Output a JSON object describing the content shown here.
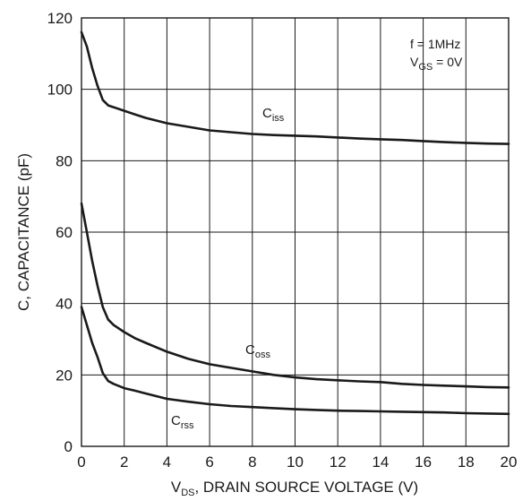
{
  "chart_data": {
    "type": "line",
    "xlabel": {
      "main": "V",
      "sub": "DS",
      "rest": ", DRAIN SOURCE VOLTAGE (V)"
    },
    "ylabel": "C, CAPACITANCE (pF)",
    "xlim": [
      0,
      20
    ],
    "ylim": [
      0,
      120
    ],
    "x_ticks": [
      "0",
      "2",
      "4",
      "6",
      "8",
      "10",
      "12",
      "14",
      "16",
      "18",
      "20"
    ],
    "y_ticks": [
      "0",
      "20",
      "40",
      "60",
      "80",
      "100",
      "120"
    ],
    "grid": true,
    "annotation": {
      "line1": "f = 1MHz",
      "line2_main": "V",
      "line2_sub": "GS",
      "line2_rest": " = 0V"
    },
    "series": [
      {
        "name": "C_iss",
        "label_main": "C",
        "label_sub": "iss",
        "x": [
          0,
          0.25,
          0.5,
          0.75,
          1.0,
          1.25,
          1.5,
          2,
          2.5,
          3,
          4,
          5,
          6,
          7,
          8,
          9,
          10,
          11,
          12,
          13,
          14,
          15,
          16,
          17,
          18,
          19,
          20
        ],
        "y": [
          116,
          112,
          106,
          101,
          97,
          95.5,
          95,
          94,
          93,
          92,
          90.5,
          89.5,
          88.5,
          88,
          87.5,
          87.2,
          87,
          86.8,
          86.5,
          86.2,
          86,
          85.8,
          85.5,
          85.2,
          85,
          84.8,
          84.7
        ]
      },
      {
        "name": "C_oss",
        "label_main": "C",
        "label_sub": "oss",
        "x": [
          0,
          0.25,
          0.5,
          0.75,
          1.0,
          1.25,
          1.5,
          2,
          2.5,
          3,
          4,
          5,
          6,
          7,
          8,
          9,
          10,
          11,
          12,
          13,
          14,
          15,
          16,
          17,
          18,
          19,
          20
        ],
        "y": [
          68,
          60,
          52,
          45,
          39,
          35.5,
          34,
          32,
          30.3,
          29,
          26.5,
          24.5,
          23,
          22,
          21,
          20,
          19.3,
          18.8,
          18.5,
          18.2,
          18,
          17.5,
          17.2,
          17,
          16.8,
          16.6,
          16.5
        ]
      },
      {
        "name": "C_rss",
        "label_main": "C",
        "label_sub": "rss",
        "x": [
          0,
          0.25,
          0.5,
          0.75,
          1.0,
          1.25,
          1.5,
          2,
          2.5,
          3,
          4,
          5,
          6,
          7,
          8,
          9,
          10,
          11,
          12,
          13,
          14,
          15,
          16,
          17,
          18,
          19,
          20
        ],
        "y": [
          39,
          34,
          29,
          25,
          20.5,
          18.3,
          17.5,
          16.3,
          15.6,
          14.8,
          13.3,
          12.5,
          11.8,
          11.3,
          11,
          10.7,
          10.4,
          10.2,
          10,
          9.9,
          9.8,
          9.7,
          9.6,
          9.5,
          9.3,
          9.2,
          9.1
        ]
      }
    ]
  }
}
